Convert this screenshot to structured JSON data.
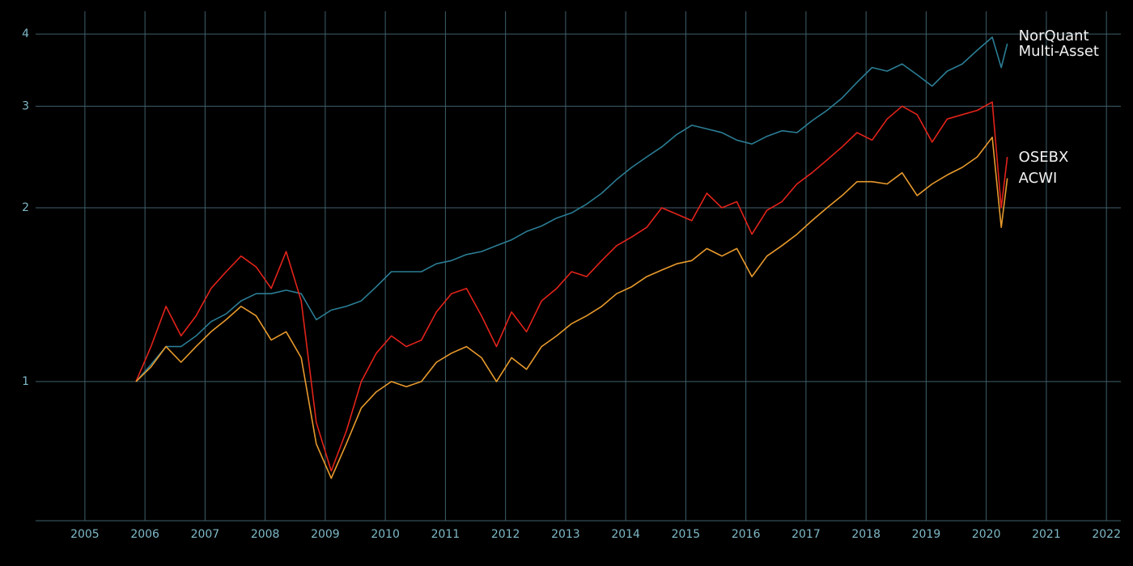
{
  "chart_data": {
    "type": "line",
    "x": [
      2005.85,
      2006.1,
      2006.35,
      2006.6,
      2006.85,
      2007.1,
      2007.35,
      2007.6,
      2007.85,
      2008.1,
      2008.35,
      2008.6,
      2008.85,
      2009.1,
      2009.35,
      2009.6,
      2009.85,
      2010.1,
      2010.35,
      2010.6,
      2010.85,
      2011.1,
      2011.35,
      2011.6,
      2011.85,
      2012.1,
      2012.35,
      2012.6,
      2012.85,
      2013.1,
      2013.35,
      2013.6,
      2013.85,
      2014.1,
      2014.35,
      2014.6,
      2014.85,
      2015.1,
      2015.35,
      2015.6,
      2015.85,
      2016.1,
      2016.35,
      2016.6,
      2016.85,
      2017.1,
      2017.35,
      2017.6,
      2017.85,
      2018.1,
      2018.35,
      2018.6,
      2018.85,
      2019.1,
      2019.35,
      2019.6,
      2019.85,
      2020.1,
      2020.25,
      2020.35
    ],
    "series": [
      {
        "name": "NorQuant Multi-Asset",
        "color": "#2b7d94",
        "values": [
          1.0,
          1.07,
          1.15,
          1.15,
          1.2,
          1.27,
          1.31,
          1.38,
          1.42,
          1.42,
          1.44,
          1.42,
          1.28,
          1.33,
          1.35,
          1.38,
          1.46,
          1.55,
          1.55,
          1.55,
          1.6,
          1.62,
          1.66,
          1.68,
          1.72,
          1.76,
          1.82,
          1.86,
          1.92,
          1.96,
          2.03,
          2.12,
          2.24,
          2.35,
          2.45,
          2.55,
          2.68,
          2.78,
          2.74,
          2.7,
          2.62,
          2.58,
          2.66,
          2.72,
          2.7,
          2.83,
          2.95,
          3.1,
          3.3,
          3.5,
          3.45,
          3.55,
          3.4,
          3.25,
          3.45,
          3.55,
          3.75,
          3.95,
          3.5,
          3.85
        ]
      },
      {
        "name": "OSEBX",
        "color": "#e2231a",
        "values": [
          1.0,
          1.15,
          1.35,
          1.2,
          1.3,
          1.45,
          1.55,
          1.65,
          1.58,
          1.45,
          1.68,
          1.38,
          0.85,
          0.7,
          0.82,
          1.0,
          1.12,
          1.2,
          1.15,
          1.18,
          1.32,
          1.42,
          1.45,
          1.3,
          1.15,
          1.32,
          1.22,
          1.38,
          1.45,
          1.55,
          1.52,
          1.62,
          1.72,
          1.78,
          1.85,
          2.0,
          1.95,
          1.9,
          2.12,
          2.0,
          2.05,
          1.8,
          1.98,
          2.05,
          2.2,
          2.3,
          2.42,
          2.55,
          2.7,
          2.62,
          2.85,
          3.0,
          2.9,
          2.6,
          2.85,
          2.9,
          2.95,
          3.05,
          2.0,
          2.45
        ]
      },
      {
        "name": "ACWI",
        "color": "#e89a2c",
        "values": [
          1.0,
          1.06,
          1.15,
          1.08,
          1.15,
          1.22,
          1.28,
          1.35,
          1.3,
          1.18,
          1.22,
          1.1,
          0.78,
          0.68,
          0.78,
          0.9,
          0.96,
          1.0,
          0.98,
          1.0,
          1.08,
          1.12,
          1.15,
          1.1,
          1.0,
          1.1,
          1.05,
          1.15,
          1.2,
          1.26,
          1.3,
          1.35,
          1.42,
          1.46,
          1.52,
          1.56,
          1.6,
          1.62,
          1.7,
          1.65,
          1.7,
          1.52,
          1.65,
          1.72,
          1.8,
          1.9,
          2.0,
          2.1,
          2.22,
          2.22,
          2.2,
          2.3,
          2.1,
          2.2,
          2.28,
          2.35,
          2.45,
          2.65,
          1.85,
          2.25
        ]
      }
    ],
    "xlim": [
      2004.18,
      2022.24
    ],
    "xticks": [
      2005,
      2006,
      2007,
      2008,
      2009,
      2010,
      2011,
      2012,
      2013,
      2014,
      2015,
      2016,
      2017,
      2018,
      2019,
      2020,
      2021,
      2022
    ],
    "ylim": [
      0.574,
      4.38
    ],
    "yticks": [
      1,
      2,
      3,
      4
    ],
    "y_scale": "log",
    "grid": true
  }
}
